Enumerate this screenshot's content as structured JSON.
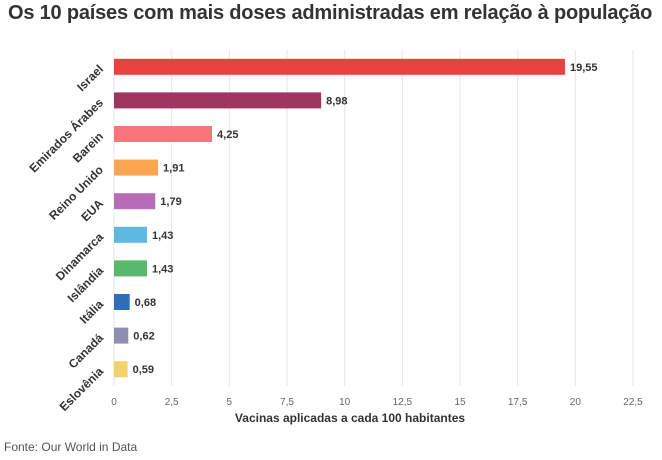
{
  "chart_data": {
    "type": "bar",
    "orientation": "horizontal",
    "title": "Os 10 países com mais doses administradas em relação à população",
    "xlabel": "Vacinas aplicadas a cada 100 habitantes",
    "ylabel": "",
    "xlim": [
      0,
      22.5
    ],
    "xticks": [
      0,
      2.5,
      5,
      7.5,
      10,
      12.5,
      15,
      17.5,
      20,
      22.5
    ],
    "xtick_labels": [
      "0",
      "2,5",
      "5",
      "7,5",
      "10",
      "12,5",
      "15",
      "17,5",
      "20",
      "22,5"
    ],
    "grid": true,
    "categories": [
      "Israel",
      "Emirados Árabes",
      "Barein",
      "Reino Unido",
      "EUA",
      "Dinamarca",
      "Islândia",
      "Itália",
      "Canadá",
      "Eslovênia"
    ],
    "values": [
      19.55,
      8.98,
      4.25,
      1.91,
      1.79,
      1.43,
      1.43,
      0.68,
      0.62,
      0.59
    ],
    "value_labels": [
      "19,55",
      "8,98",
      "4,25",
      "1,91",
      "1,79",
      "1,43",
      "1,43",
      "0,68",
      "0,62",
      "0,59"
    ],
    "colors": [
      "#e8423e",
      "#a0365f",
      "#f7767a",
      "#fba550",
      "#b86cb8",
      "#5db9e0",
      "#58b86c",
      "#2e6db8",
      "#8e8fae",
      "#f5d16a"
    ]
  },
  "source": "Fonte: Our World in Data"
}
